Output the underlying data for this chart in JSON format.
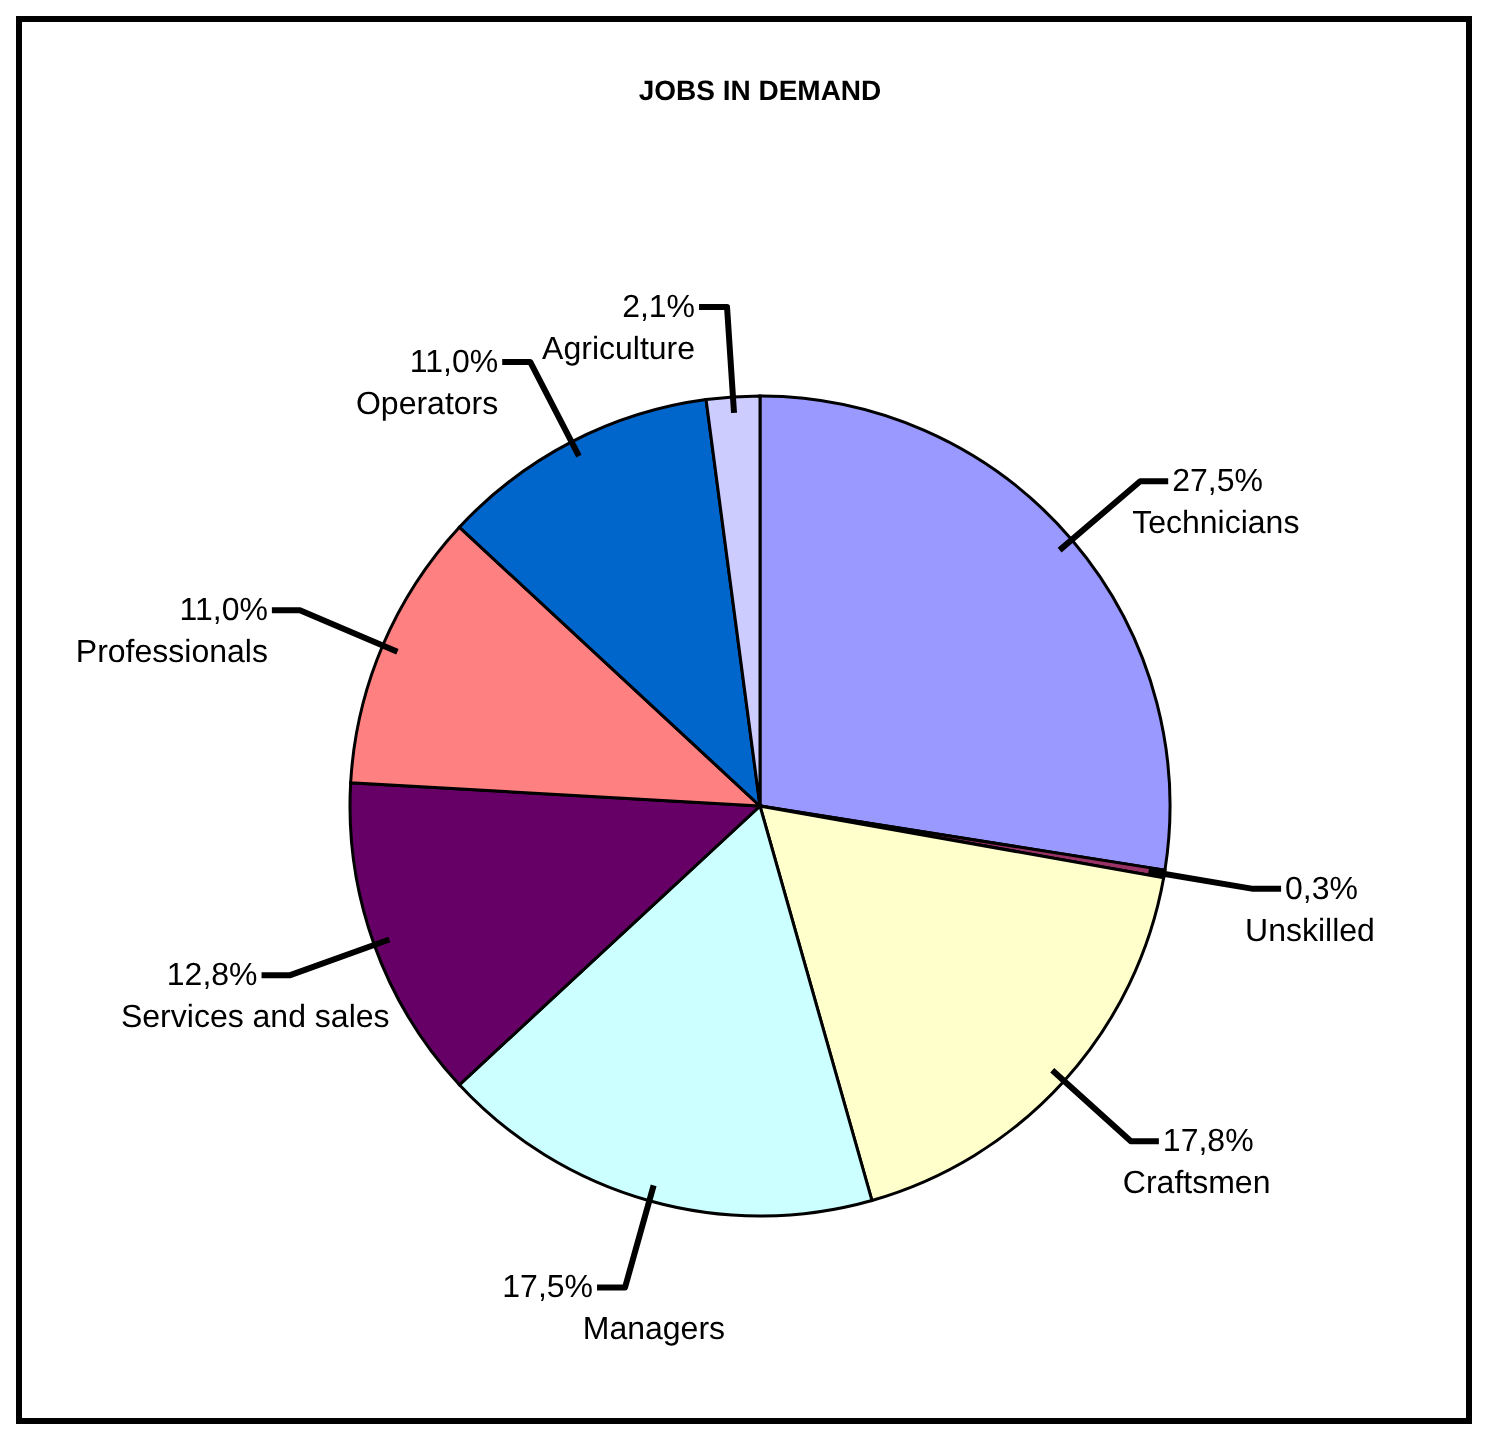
{
  "chart_data": {
    "type": "pie",
    "title": "JOBS IN DEMAND",
    "categories": [
      "Technicians",
      "Unskilled",
      "Craftsmen",
      "Managers",
      "Services and sales",
      "Professionals",
      "Operators",
      "Agriculture"
    ],
    "values": [
      27.5,
      0.3,
      17.8,
      17.5,
      12.8,
      11.0,
      11.0,
      2.1
    ],
    "value_labels": [
      "27,5%",
      "0,3%",
      "17,8%",
      "17,5%",
      "12,8%",
      "11,0%",
      "11,0%",
      "2,1%"
    ],
    "colors": [
      "#9999ff",
      "#993366",
      "#ffffcc",
      "#ccffff",
      "#660066",
      "#ff8080",
      "#0066cc",
      "#ccccff"
    ],
    "legend": false
  }
}
